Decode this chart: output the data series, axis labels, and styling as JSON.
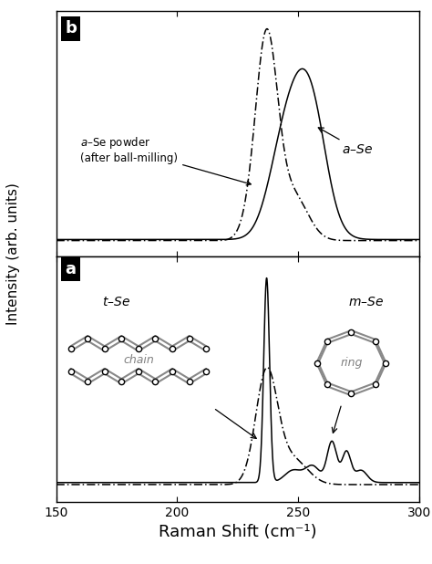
{
  "xlim": [
    150,
    300
  ],
  "xlabel": "Raman Shift (cm⁻¹)",
  "ylabel": "Intensity (arb. units)",
  "bg_color": "#ffffff",
  "panel_b_label": "b",
  "panel_a_label": "a",
  "xticks": [
    150,
    200,
    250,
    300
  ],
  "label_color": "#000000",
  "chain_color": "#888888",
  "ring_color": "#888888"
}
